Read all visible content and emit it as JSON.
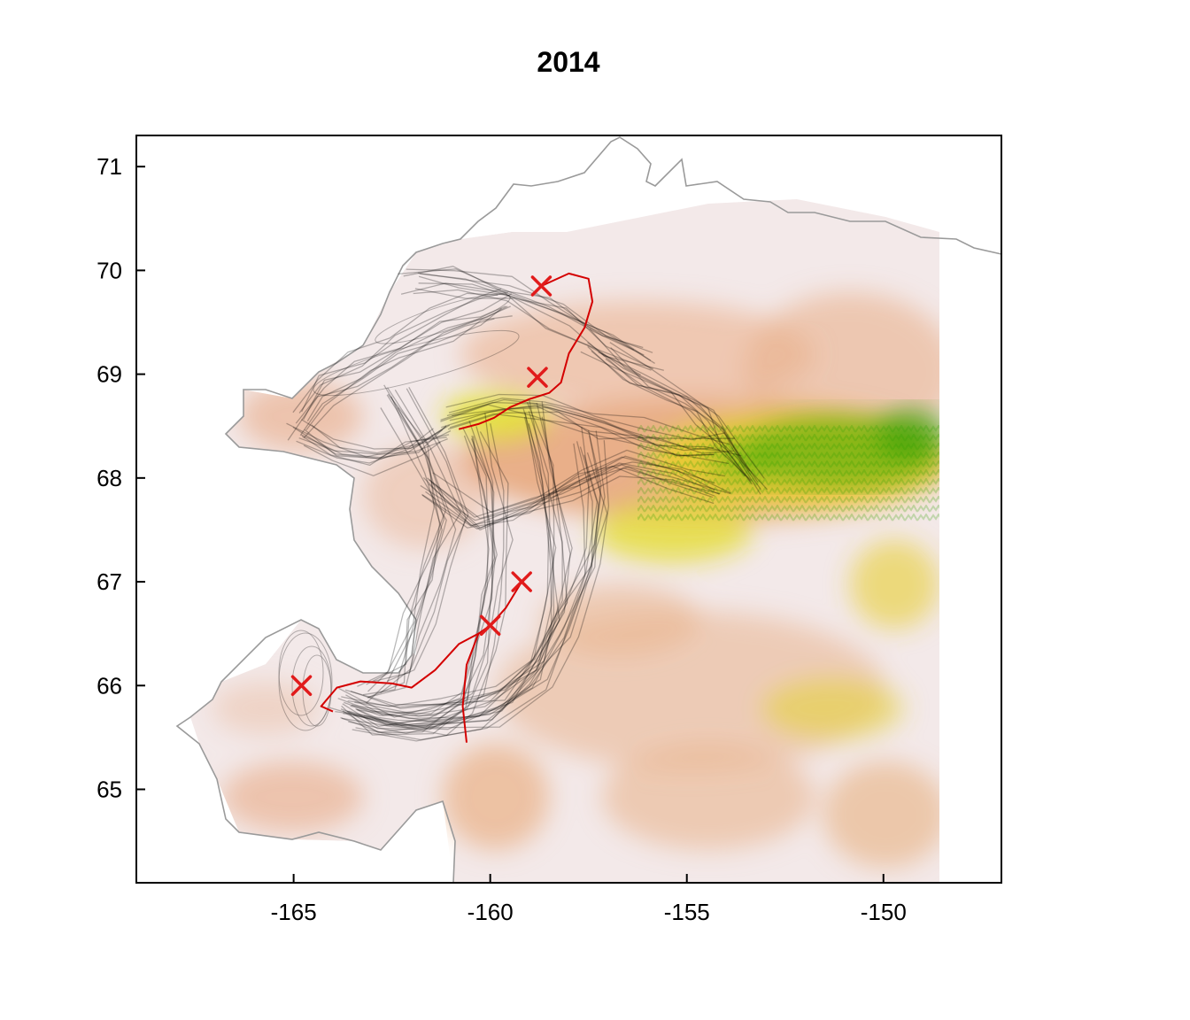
{
  "title": "2014",
  "chart_data": {
    "type": "map",
    "title": "2014",
    "xlim": [
      -169.0,
      -147.0
    ],
    "ylim": [
      64.1,
      71.3
    ],
    "x_ticks": [
      -165,
      -160,
      -155,
      -150
    ],
    "y_ticks": [
      65,
      66,
      67,
      68,
      69,
      70,
      71
    ],
    "x_tick_labels": [
      "-165",
      "-160",
      "-155",
      "-150"
    ],
    "y_tick_labels": [
      "65",
      "66",
      "67",
      "68",
      "69",
      "70",
      "71"
    ],
    "grid": false,
    "legend": "none",
    "colors": {
      "track": "#000000",
      "highlight_track": "#d40000",
      "marker": "#e11b1b",
      "coastline": "#9a9a9a",
      "elevation_low": "#f1e6e6",
      "elevation_mid": "#e6a878",
      "elevation_high": "#e8e000",
      "elevation_peak": "#2fa800"
    },
    "markers": [
      {
        "lon": -158.7,
        "lat": 69.85
      },
      {
        "lon": -158.8,
        "lat": 68.97
      },
      {
        "lon": -159.2,
        "lat": 67.0
      },
      {
        "lon": -160.0,
        "lat": 66.58
      },
      {
        "lon": -164.8,
        "lat": 66.0
      }
    ],
    "highlight_track": [
      [
        -160.8,
        68.47
      ],
      [
        -160.3,
        68.52
      ],
      [
        -159.9,
        68.58
      ],
      [
        -159.5,
        68.68
      ],
      [
        -159.0,
        68.76
      ],
      [
        -158.5,
        68.82
      ],
      [
        -158.2,
        68.92
      ],
      [
        -158.0,
        69.2
      ],
      [
        -157.6,
        69.45
      ],
      [
        -157.4,
        69.7
      ],
      [
        -157.5,
        69.92
      ],
      [
        -158.0,
        69.97
      ],
      [
        -158.7,
        69.85
      ]
    ],
    "highlight_track_south": [
      [
        -160.6,
        65.45
      ],
      [
        -160.7,
        65.8
      ],
      [
        -160.6,
        66.2
      ],
      [
        -160.3,
        66.5
      ],
      [
        -160.0,
        66.58
      ],
      [
        -159.6,
        66.75
      ],
      [
        -159.2,
        67.0
      ]
    ],
    "highlight_track_west": [
      [
        -160.2,
        66.52
      ],
      [
        -160.8,
        66.4
      ],
      [
        -161.4,
        66.15
      ],
      [
        -162.0,
        65.98
      ],
      [
        -162.5,
        66.02
      ],
      [
        -163.3,
        66.04
      ],
      [
        -163.9,
        65.98
      ],
      [
        -164.3,
        65.8
      ],
      [
        -164.0,
        65.75
      ]
    ],
    "herd_routes": [
      {
        "path": [
          [
            -164.8,
            68.55
          ],
          [
            -164.2,
            68.85
          ],
          [
            -163.3,
            69.05
          ],
          [
            -162.3,
            69.25
          ],
          [
            -161.2,
            69.45
          ],
          [
            -160.3,
            69.6
          ],
          [
            -159.6,
            69.68
          ]
        ]
      },
      {
        "path": [
          [
            -164.9,
            68.45
          ],
          [
            -164.0,
            68.25
          ],
          [
            -163.0,
            68.18
          ],
          [
            -162.0,
            68.3
          ],
          [
            -161.2,
            68.45
          ]
        ]
      },
      {
        "path": [
          [
            -161.0,
            68.6
          ],
          [
            -159.8,
            68.7
          ],
          [
            -158.5,
            68.68
          ],
          [
            -157.2,
            68.55
          ],
          [
            -156.0,
            68.42
          ],
          [
            -154.8,
            68.3
          ],
          [
            -153.9,
            68.3
          ]
        ]
      },
      {
        "path": [
          [
            -160.4,
            68.55
          ],
          [
            -160.0,
            68.0
          ],
          [
            -159.8,
            67.4
          ],
          [
            -160.0,
            66.9
          ],
          [
            -160.2,
            66.4
          ],
          [
            -160.6,
            65.9
          ],
          [
            -161.5,
            65.7
          ],
          [
            -162.8,
            65.7
          ],
          [
            -163.8,
            65.85
          ]
        ]
      },
      {
        "path": [
          [
            -159.0,
            68.6
          ],
          [
            -158.6,
            68.0
          ],
          [
            -158.3,
            67.3
          ],
          [
            -158.4,
            66.7
          ],
          [
            -158.9,
            66.2
          ],
          [
            -159.8,
            65.85
          ],
          [
            -161.0,
            65.7
          ],
          [
            -162.5,
            65.65
          ],
          [
            -163.8,
            65.8
          ]
        ]
      },
      {
        "path": [
          [
            -157.5,
            68.4
          ],
          [
            -157.2,
            67.8
          ],
          [
            -157.4,
            67.2
          ],
          [
            -158.0,
            66.6
          ],
          [
            -158.8,
            66.1
          ],
          [
            -160.0,
            65.75
          ],
          [
            -161.8,
            65.62
          ],
          [
            -163.5,
            65.75
          ]
        ]
      },
      {
        "path": [
          [
            -162.4,
            68.8
          ],
          [
            -161.5,
            68.2
          ],
          [
            -161.0,
            67.6
          ],
          [
            -161.4,
            67.1
          ],
          [
            -161.8,
            66.6
          ],
          [
            -162.2,
            66.1
          ],
          [
            -163.0,
            65.95
          ]
        ]
      },
      {
        "path": [
          [
            -157.3,
            69.3
          ],
          [
            -156.4,
            69.0
          ],
          [
            -155.3,
            68.8
          ],
          [
            -154.4,
            68.6
          ],
          [
            -153.9,
            68.3
          ],
          [
            -153.3,
            68.0
          ]
        ]
      },
      {
        "path": [
          [
            -162.0,
            69.9
          ],
          [
            -160.8,
            69.9
          ],
          [
            -159.5,
            69.8
          ],
          [
            -158.4,
            69.6
          ],
          [
            -157.2,
            69.35
          ],
          [
            -156.0,
            69.15
          ]
        ]
      },
      {
        "path": [
          [
            -161.5,
            67.9
          ],
          [
            -160.2,
            67.5
          ],
          [
            -159.0,
            67.7
          ],
          [
            -157.8,
            67.9
          ],
          [
            -156.5,
            68.1
          ],
          [
            -155.2,
            68.0
          ],
          [
            -154.0,
            67.85
          ]
        ]
      }
    ]
  }
}
